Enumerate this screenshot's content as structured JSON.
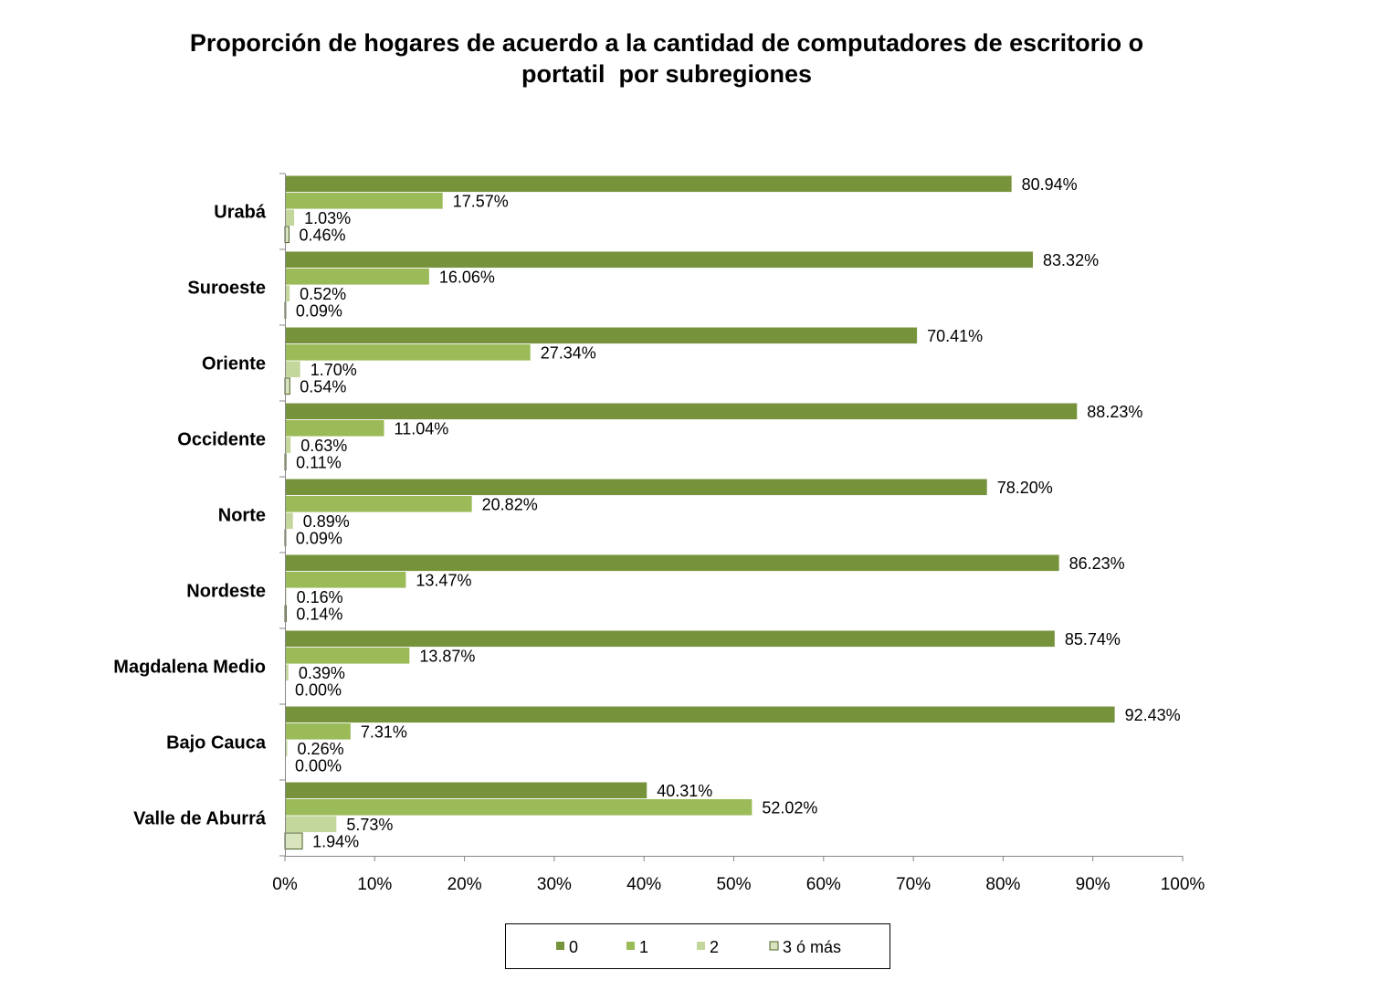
{
  "chart_data": {
    "type": "bar",
    "orientation": "horizontal",
    "title": "Proporción de hogares de acuerdo a la cantidad de computadores de escritorio o\nportatil  por subregiones",
    "categories": [
      "Urabá",
      "Suroeste",
      "Oriente",
      "Occidente",
      "Norte",
      "Nordeste",
      "Magdalena Medio",
      "Bajo Cauca",
      "Valle de Aburrá"
    ],
    "series": [
      {
        "name": "0",
        "color": "#76933C",
        "values": [
          80.94,
          83.32,
          70.41,
          88.23,
          78.2,
          86.23,
          85.74,
          92.43,
          40.31
        ],
        "labels": [
          "80.94%",
          "83.32%",
          "70.41%",
          "88.23%",
          "78.20%",
          "86.23%",
          "85.74%",
          "92.43%",
          "40.31%"
        ]
      },
      {
        "name": "1",
        "color": "#9BBB59",
        "values": [
          17.57,
          16.06,
          27.34,
          11.04,
          20.82,
          13.47,
          13.87,
          7.31,
          52.02
        ],
        "labels": [
          "17.57%",
          "16.06%",
          "27.34%",
          "11.04%",
          "20.82%",
          "13.47%",
          "13.87%",
          "7.31%",
          "52.02%"
        ]
      },
      {
        "name": "2",
        "color": "#C3D69B",
        "values": [
          1.03,
          0.52,
          1.7,
          0.63,
          0.89,
          0.16,
          0.39,
          0.26,
          5.73
        ],
        "labels": [
          "1.03%",
          "0.52%",
          "1.70%",
          "0.63%",
          "0.89%",
          "0.16%",
          "0.39%",
          "0.26%",
          "5.73%"
        ]
      },
      {
        "name": "3 ó más",
        "color": "#D7E4BD",
        "values": [
          0.46,
          0.09,
          0.54,
          0.11,
          0.09,
          0.14,
          0.0,
          0.0,
          1.94
        ],
        "labels": [
          "0.46%",
          "0.09%",
          "0.54%",
          "0.11%",
          "0.09%",
          "0.14%",
          "0.00%",
          "0.00%",
          "1.94%"
        ]
      }
    ],
    "xlim": [
      0,
      100
    ],
    "x_ticks": [
      "0%",
      "10%",
      "20%",
      "30%",
      "40%",
      "50%",
      "60%",
      "70%",
      "80%",
      "90%",
      "100%"
    ],
    "grid": false,
    "legend_position": "bottom"
  }
}
